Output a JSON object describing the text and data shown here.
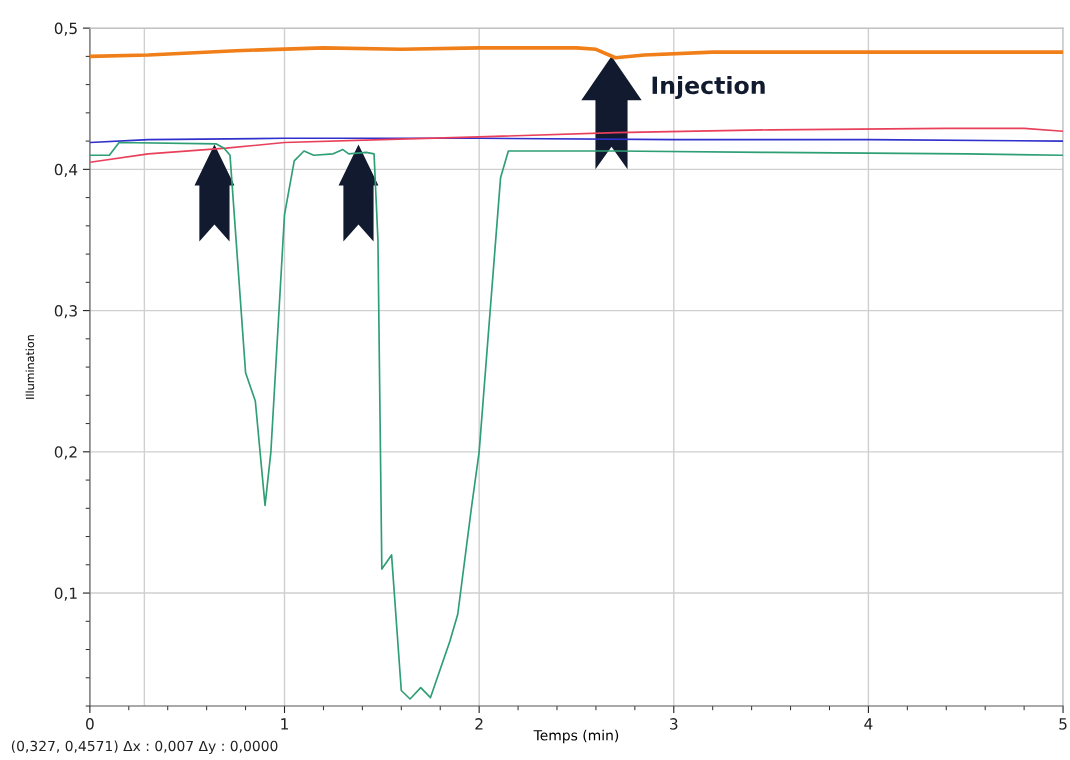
{
  "chart_data": {
    "type": "line",
    "xlabel": "Temps (min)",
    "ylabel": "Illumination",
    "xlim": [
      0,
      5
    ],
    "ylim": [
      0.02,
      0.5
    ],
    "xticks": [
      0,
      1,
      2,
      3,
      4,
      5
    ],
    "yticks": [
      {
        "value": 0.1,
        "label": "0,1"
      },
      {
        "value": 0.2,
        "label": "0,2"
      },
      {
        "value": 0.3,
        "label": "0,3"
      },
      {
        "value": 0.4,
        "label": "0,4"
      },
      {
        "value": 0.5,
        "label": "0,5"
      }
    ],
    "grid": true,
    "line_style": "solid",
    "marker": "none",
    "ref_lines": [
      {
        "axis": "x",
        "value": 0.28,
        "color": "#d0d0d0"
      }
    ],
    "annotations": [
      {
        "text": "Injection",
        "x": 2.68,
        "y": 0.48
      },
      "(0,327, 0,4571) Δx : 0,007 Δy : 0,0000"
    ],
    "series": [
      {
        "color": "#f07f1a",
        "x": [
          0,
          0.3,
          0.75,
          1.2,
          1.6,
          2.0,
          2.5,
          2.6,
          2.7,
          2.85,
          3.2,
          4.0,
          5.0
        ],
        "values": [
          0.48,
          0.481,
          0.484,
          0.486,
          0.485,
          0.486,
          0.486,
          0.485,
          0.479,
          0.481,
          0.483,
          0.483,
          0.483
        ]
      },
      {
        "color": "#3030cc",
        "x": [
          0,
          0.3,
          1.0,
          2.0,
          3.0,
          4.0,
          5.0
        ],
        "values": [
          0.419,
          0.421,
          0.422,
          0.422,
          0.421,
          0.421,
          0.42
        ]
      },
      {
        "color": "#e8405a",
        "x": [
          0,
          0.3,
          0.7,
          1.0,
          1.5,
          2.0,
          2.7,
          3.5,
          4.4,
          4.8,
          5.0
        ],
        "values": [
          0.405,
          0.411,
          0.415,
          0.419,
          0.421,
          0.423,
          0.426,
          0.428,
          0.429,
          0.429,
          0.427
        ]
      },
      {
        "color": "#2e9e74",
        "x": [
          0,
          0.1,
          0.15,
          0.65,
          0.69,
          0.72,
          0.8,
          0.85,
          0.9,
          0.93,
          1.0,
          1.05,
          1.1,
          1.15,
          1.25,
          1.3,
          1.33,
          1.42,
          1.46,
          1.48,
          1.5,
          1.55,
          1.6,
          1.645,
          1.7,
          1.75,
          1.85,
          1.89,
          1.96,
          2.0,
          2.03,
          2.11,
          2.15,
          2.7,
          3.5,
          4.5,
          5.0
        ],
        "values": [
          0.41,
          0.41,
          0.419,
          0.418,
          0.415,
          0.41,
          0.256,
          0.236,
          0.162,
          0.2,
          0.368,
          0.406,
          0.413,
          0.41,
          0.411,
          0.414,
          0.411,
          0.412,
          0.411,
          0.35,
          0.117,
          0.127,
          0.031,
          0.025,
          0.033,
          0.026,
          0.066,
          0.085,
          0.16,
          0.2,
          0.253,
          0.394,
          0.413,
          0.413,
          0.412,
          0.411,
          0.41
        ]
      }
    ]
  }
}
